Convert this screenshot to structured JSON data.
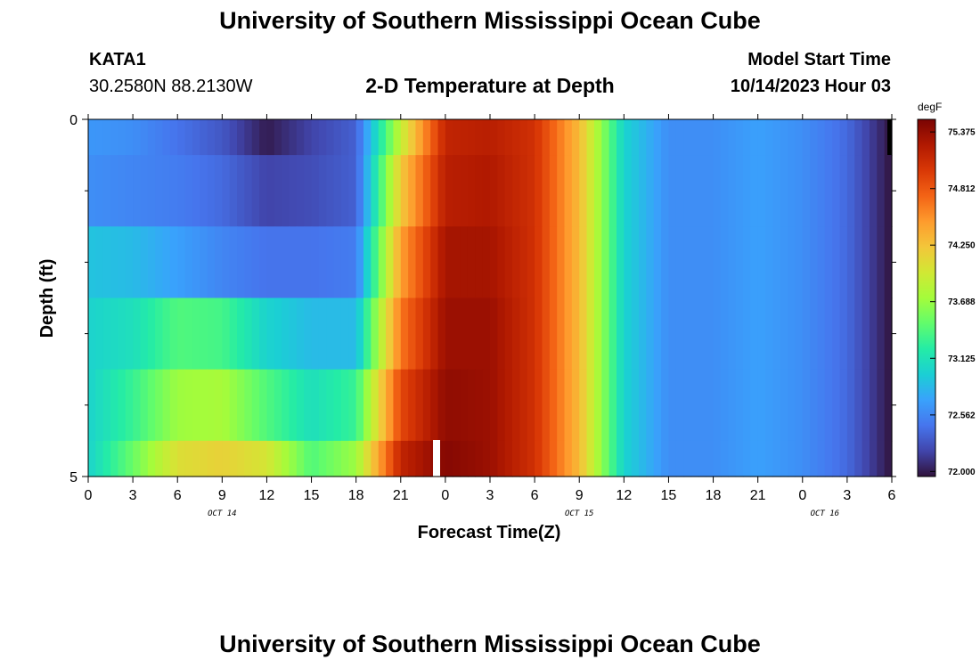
{
  "header": {
    "title": "University of Southern Mississippi Ocean Cube",
    "station_id": "KATA1",
    "station_coords": "30.2580N  88.2130W",
    "subtitle": "2-D Temperature at Depth",
    "model_start_label": "Model Start Time",
    "model_start_value": "10/14/2023 Hour 03"
  },
  "footer": {
    "title": "University of Southern Mississippi Ocean Cube"
  },
  "chart_data": {
    "type": "heatmap",
    "title": "2-D Temperature at Depth",
    "xlabel": "Forecast Time(Z)",
    "ylabel": "Depth (ft)",
    "ylim": [
      0,
      5
    ],
    "y_ticks": [
      "0",
      "5"
    ],
    "x_tick_labels": [
      "0",
      "3",
      "6",
      "9",
      "12",
      "15",
      "18",
      "21",
      "0",
      "3",
      "6",
      "9",
      "12",
      "15",
      "18",
      "21",
      "0",
      "3",
      "6"
    ],
    "date_labels": [
      {
        "label": "OCT 14",
        "at_tick": 3
      },
      {
        "label": "OCT 15",
        "at_tick": 11
      },
      {
        "label": "OCT 16",
        "at_tick": 16.5
      }
    ],
    "colorbar": {
      "unit": "degF",
      "min": 71.95,
      "max": 75.5,
      "tick_labels": [
        "72.000",
        "72.562",
        "73.125",
        "73.688",
        "74.250",
        "74.812",
        "75.375"
      ],
      "tick_values": [
        72.0,
        72.562,
        73.125,
        73.688,
        74.25,
        74.812,
        75.375
      ],
      "colormap": [
        "#30123b",
        "#4145ab",
        "#4675ed",
        "#39a2fc",
        "#1bcfd4",
        "#24eca6",
        "#61fc6c",
        "#a4fc3b",
        "#d1e834",
        "#f3c63a",
        "#fe9b2d",
        "#f36315",
        "#d93806",
        "#b11901",
        "#7a0403"
      ]
    },
    "depth_layers": [
      "0-0.5 ft",
      "0.5-1.5 ft",
      "1.5-2.5 ft",
      "2.5-3.5 ft",
      "3.5-4.5 ft",
      "4.5-5 ft"
    ],
    "time_hours": [
      0,
      3,
      6,
      9,
      12,
      15,
      18,
      21,
      24,
      27,
      30,
      33,
      36,
      39,
      42,
      45,
      48,
      51,
      54
    ],
    "series": [
      {
        "name": "0-0.5 ft",
        "values": [
          72.65,
          72.6,
          72.45,
          72.3,
          72.0,
          72.2,
          72.35,
          73.9,
          75.15,
          75.2,
          75.05,
          74.3,
          73.0,
          72.6,
          72.6,
          72.7,
          72.6,
          72.4,
          71.95
        ]
      },
      {
        "name": "0.5-1.5 ft",
        "values": [
          72.6,
          72.55,
          72.5,
          72.4,
          72.2,
          72.25,
          72.35,
          74.2,
          75.2,
          75.25,
          75.05,
          74.3,
          73.0,
          72.6,
          72.6,
          72.7,
          72.6,
          72.4,
          71.95
        ]
      },
      {
        "name": "1.5-2.5 ft",
        "values": [
          72.9,
          72.85,
          72.7,
          72.55,
          72.45,
          72.45,
          72.5,
          74.45,
          75.3,
          75.3,
          75.05,
          74.3,
          73.0,
          72.6,
          72.6,
          72.7,
          72.6,
          72.4,
          71.95
        ]
      },
      {
        "name": "2.5-3.5 ft",
        "values": [
          73.0,
          73.1,
          73.4,
          73.35,
          73.0,
          72.85,
          72.85,
          74.65,
          75.35,
          75.35,
          75.05,
          74.3,
          73.0,
          72.6,
          72.6,
          72.7,
          72.6,
          72.4,
          71.95
        ]
      },
      {
        "name": "3.5-4.5 ft",
        "values": [
          73.0,
          73.3,
          73.7,
          73.75,
          73.4,
          73.1,
          73.3,
          74.9,
          75.4,
          75.35,
          75.05,
          74.3,
          73.0,
          72.6,
          72.6,
          72.7,
          72.6,
          72.4,
          71.95
        ]
      },
      {
        "name": "4.5-5 ft",
        "values": [
          73.0,
          73.5,
          74.05,
          74.15,
          74.0,
          73.4,
          73.7,
          75.15,
          75.45,
          75.35,
          75.05,
          74.3,
          73.0,
          72.6,
          72.6,
          72.7,
          72.6,
          72.4,
          71.95
        ]
      }
    ]
  }
}
